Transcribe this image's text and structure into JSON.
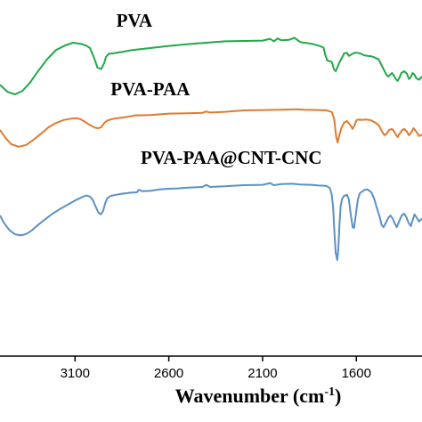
{
  "chart_data": {
    "type": "line",
    "title": "",
    "xlabel": "Wavenumber (cm",
    "xlabel_superscript": "-1",
    "xlabel_suffix": ")",
    "ylabel": "",
    "x_reversed": true,
    "xlim": [
      3500,
      1250
    ],
    "ylim": [
      0,
      1
    ],
    "x_ticks": [
      3100,
      2600,
      2100,
      1600
    ],
    "x_tick_labels": [
      "3100",
      "2600",
      "2100",
      "1600"
    ],
    "grid": false,
    "series": [
      {
        "name": "PVA",
        "color": "#22a848",
        "label_x": 2880,
        "label_y": 0.925,
        "points": [
          [
            3500,
            0.762
          ],
          [
            3460,
            0.742
          ],
          [
            3420,
            0.735
          ],
          [
            3380,
            0.745
          ],
          [
            3340,
            0.768
          ],
          [
            3300,
            0.798
          ],
          [
            3250,
            0.833
          ],
          [
            3200,
            0.86
          ],
          [
            3150,
            0.873
          ],
          [
            3110,
            0.88
          ],
          [
            3070,
            0.877
          ],
          [
            3040,
            0.872
          ],
          [
            3020,
            0.865
          ],
          [
            3000,
            0.84
          ],
          [
            2980,
            0.81
          ],
          [
            2960,
            0.806
          ],
          [
            2945,
            0.822
          ],
          [
            2935,
            0.84
          ],
          [
            2920,
            0.849
          ],
          [
            2900,
            0.85
          ],
          [
            2850,
            0.854
          ],
          [
            2800,
            0.859
          ],
          [
            2700,
            0.865
          ],
          [
            2600,
            0.871
          ],
          [
            2500,
            0.876
          ],
          [
            2400,
            0.88
          ],
          [
            2300,
            0.884
          ],
          [
            2200,
            0.885
          ],
          [
            2100,
            0.886
          ],
          [
            2060,
            0.891
          ],
          [
            2040,
            0.884
          ],
          [
            2020,
            0.892
          ],
          [
            2000,
            0.887
          ],
          [
            1960,
            0.888
          ],
          [
            1930,
            0.894
          ],
          [
            1900,
            0.882
          ],
          [
            1880,
            0.88
          ],
          [
            1860,
            0.879
          ],
          [
            1850,
            0.878
          ],
          [
            1830,
            0.876
          ],
          [
            1810,
            0.873
          ],
          [
            1790,
            0.87
          ],
          [
            1775,
            0.866
          ],
          [
            1765,
            0.845
          ],
          [
            1755,
            0.83
          ],
          [
            1740,
            0.828
          ],
          [
            1730,
            0.825
          ],
          [
            1720,
            0.806
          ],
          [
            1710,
            0.8
          ],
          [
            1700,
            0.812
          ],
          [
            1690,
            0.825
          ],
          [
            1675,
            0.84
          ],
          [
            1665,
            0.85
          ],
          [
            1650,
            0.852
          ],
          [
            1640,
            0.843
          ],
          [
            1630,
            0.846
          ],
          [
            1610,
            0.852
          ],
          [
            1600,
            0.852
          ],
          [
            1580,
            0.85
          ],
          [
            1560,
            0.845
          ],
          [
            1540,
            0.843
          ],
          [
            1520,
            0.842
          ],
          [
            1500,
            0.838
          ],
          [
            1480,
            0.833
          ],
          [
            1470,
            0.821
          ],
          [
            1455,
            0.806
          ],
          [
            1440,
            0.79
          ],
          [
            1430,
            0.785
          ],
          [
            1420,
            0.79
          ],
          [
            1410,
            0.795
          ],
          [
            1400,
            0.788
          ],
          [
            1390,
            0.778
          ],
          [
            1380,
            0.773
          ],
          [
            1370,
            0.782
          ],
          [
            1360,
            0.795
          ],
          [
            1345,
            0.8
          ],
          [
            1330,
            0.793
          ],
          [
            1320,
            0.778
          ],
          [
            1310,
            0.783
          ],
          [
            1300,
            0.795
          ],
          [
            1290,
            0.79
          ],
          [
            1280,
            0.78
          ],
          [
            1265,
            0.776
          ],
          [
            1250,
            0.785
          ]
        ]
      },
      {
        "name": "PVA-PAA",
        "color": "#e07b2e",
        "label_x": 2910,
        "label_y": 0.732,
        "points": [
          [
            3500,
            0.635
          ],
          [
            3470,
            0.612
          ],
          [
            3440,
            0.595
          ],
          [
            3400,
            0.588
          ],
          [
            3360,
            0.593
          ],
          [
            3320,
            0.608
          ],
          [
            3280,
            0.625
          ],
          [
            3240,
            0.643
          ],
          [
            3200,
            0.655
          ],
          [
            3160,
            0.663
          ],
          [
            3120,
            0.667
          ],
          [
            3090,
            0.668
          ],
          [
            3070,
            0.665
          ],
          [
            3050,
            0.659
          ],
          [
            3030,
            0.652
          ],
          [
            3010,
            0.646
          ],
          [
            2990,
            0.641
          ],
          [
            2975,
            0.64
          ],
          [
            2960,
            0.643
          ],
          [
            2945,
            0.654
          ],
          [
            2930,
            0.661
          ],
          [
            2900,
            0.666
          ],
          [
            2860,
            0.669
          ],
          [
            2820,
            0.672
          ],
          [
            2780,
            0.676
          ],
          [
            2700,
            0.677
          ],
          [
            2600,
            0.681
          ],
          [
            2500,
            0.682
          ],
          [
            2420,
            0.683
          ],
          [
            2400,
            0.687
          ],
          [
            2380,
            0.684
          ],
          [
            2300,
            0.686
          ],
          [
            2200,
            0.69
          ],
          [
            2100,
            0.691
          ],
          [
            2000,
            0.692
          ],
          [
            1920,
            0.693
          ],
          [
            1880,
            0.692
          ],
          [
            1800,
            0.691
          ],
          [
            1760,
            0.69
          ],
          [
            1745,
            0.688
          ],
          [
            1730,
            0.685
          ],
          [
            1718,
            0.665
          ],
          [
            1708,
            0.618
          ],
          [
            1700,
            0.6
          ],
          [
            1690,
            0.622
          ],
          [
            1680,
            0.64
          ],
          [
            1665,
            0.656
          ],
          [
            1650,
            0.66
          ],
          [
            1630,
            0.647
          ],
          [
            1620,
            0.638
          ],
          [
            1610,
            0.648
          ],
          [
            1598,
            0.663
          ],
          [
            1585,
            0.664
          ],
          [
            1570,
            0.663
          ],
          [
            1560,
            0.664
          ],
          [
            1540,
            0.664
          ],
          [
            1520,
            0.662
          ],
          [
            1500,
            0.656
          ],
          [
            1480,
            0.648
          ],
          [
            1460,
            0.628
          ],
          [
            1450,
            0.62
          ],
          [
            1440,
            0.624
          ],
          [
            1425,
            0.635
          ],
          [
            1410,
            0.638
          ],
          [
            1400,
            0.632
          ],
          [
            1390,
            0.623
          ],
          [
            1380,
            0.615
          ],
          [
            1370,
            0.624
          ],
          [
            1355,
            0.635
          ],
          [
            1345,
            0.638
          ],
          [
            1330,
            0.63
          ],
          [
            1320,
            0.62
          ],
          [
            1305,
            0.63
          ],
          [
            1295,
            0.64
          ],
          [
            1280,
            0.63
          ],
          [
            1265,
            0.618
          ],
          [
            1250,
            0.622
          ]
        ]
      },
      {
        "name": "PVA-PAA@CNT-CNC",
        "color": "#5b91c4",
        "label_x": 2750,
        "label_y": 0.54,
        "points": [
          [
            3500,
            0.395
          ],
          [
            3480,
            0.375
          ],
          [
            3450,
            0.354
          ],
          [
            3420,
            0.342
          ],
          [
            3390,
            0.339
          ],
          [
            3360,
            0.343
          ],
          [
            3330,
            0.353
          ],
          [
            3300,
            0.367
          ],
          [
            3260,
            0.384
          ],
          [
            3220,
            0.4
          ],
          [
            3180,
            0.413
          ],
          [
            3140,
            0.425
          ],
          [
            3100,
            0.437
          ],
          [
            3060,
            0.447
          ],
          [
            3040,
            0.451
          ],
          [
            3020,
            0.448
          ],
          [
            3005,
            0.438
          ],
          [
            2990,
            0.42
          ],
          [
            2975,
            0.403
          ],
          [
            2962,
            0.398
          ],
          [
            2950,
            0.408
          ],
          [
            2940,
            0.428
          ],
          [
            2928,
            0.443
          ],
          [
            2910,
            0.45
          ],
          [
            2890,
            0.452
          ],
          [
            2850,
            0.456
          ],
          [
            2800,
            0.459
          ],
          [
            2770,
            0.46
          ],
          [
            2760,
            0.467
          ],
          [
            2740,
            0.463
          ],
          [
            2700,
            0.464
          ],
          [
            2650,
            0.468
          ],
          [
            2600,
            0.47
          ],
          [
            2550,
            0.471
          ],
          [
            2500,
            0.473
          ],
          [
            2420,
            0.475
          ],
          [
            2400,
            0.481
          ],
          [
            2380,
            0.475
          ],
          [
            2300,
            0.477
          ],
          [
            2200,
            0.48
          ],
          [
            2100,
            0.481
          ],
          [
            2060,
            0.486
          ],
          [
            2040,
            0.48
          ],
          [
            2000,
            0.483
          ],
          [
            1940,
            0.484
          ],
          [
            1900,
            0.482
          ],
          [
            1840,
            0.481
          ],
          [
            1800,
            0.479
          ],
          [
            1760,
            0.478
          ],
          [
            1742,
            0.472
          ],
          [
            1732,
            0.455
          ],
          [
            1724,
            0.42
          ],
          [
            1716,
            0.34
          ],
          [
            1710,
            0.29
          ],
          [
            1702,
            0.27
          ],
          [
            1696,
            0.3
          ],
          [
            1690,
            0.37
          ],
          [
            1684,
            0.42
          ],
          [
            1676,
            0.442
          ],
          [
            1666,
            0.45
          ],
          [
            1650,
            0.453
          ],
          [
            1640,
            0.44
          ],
          [
            1630,
            0.4
          ],
          [
            1620,
            0.362
          ],
          [
            1612,
            0.36
          ],
          [
            1602,
            0.4
          ],
          [
            1592,
            0.44
          ],
          [
            1582,
            0.457
          ],
          [
            1570,
            0.462
          ],
          [
            1555,
            0.467
          ],
          [
            1540,
            0.468
          ],
          [
            1520,
            0.46
          ],
          [
            1505,
            0.442
          ],
          [
            1490,
            0.415
          ],
          [
            1475,
            0.39
          ],
          [
            1465,
            0.368
          ],
          [
            1455,
            0.362
          ],
          [
            1445,
            0.372
          ],
          [
            1430,
            0.388
          ],
          [
            1418,
            0.395
          ],
          [
            1405,
            0.385
          ],
          [
            1395,
            0.372
          ],
          [
            1385,
            0.362
          ],
          [
            1372,
            0.378
          ],
          [
            1358,
            0.395
          ],
          [
            1345,
            0.4
          ],
          [
            1333,
            0.39
          ],
          [
            1322,
            0.375
          ],
          [
            1310,
            0.365
          ],
          [
            1300,
            0.382
          ],
          [
            1290,
            0.398
          ],
          [
            1280,
            0.39
          ],
          [
            1265,
            0.378
          ],
          [
            1250,
            0.386
          ]
        ]
      }
    ]
  }
}
